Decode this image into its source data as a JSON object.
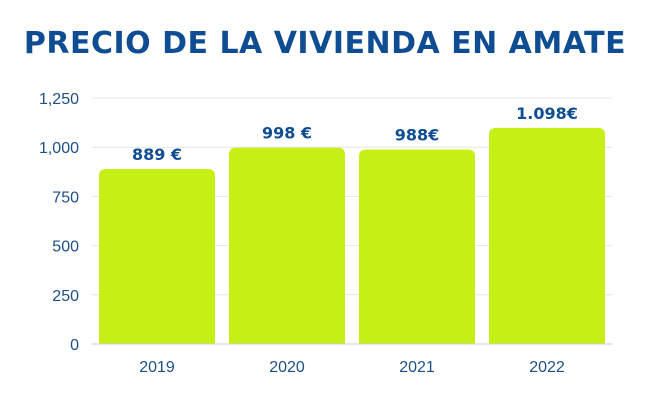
{
  "colors": {
    "title": "#0e4d92",
    "bar": "#c5ef15",
    "tick": "#1d4f86",
    "grid": "#e6e6e6"
  },
  "chart_data": {
    "type": "bar",
    "title": "PRECIO DE LA VIVIENDA EN AMATE",
    "categories": [
      "2019",
      "2020",
      "2021",
      "2022"
    ],
    "values": [
      889,
      998,
      988,
      1098
    ],
    "data_labels": [
      "889 €",
      "998 €",
      "988€",
      "1.098€"
    ],
    "yticks": [
      0,
      250,
      500,
      750,
      1000,
      1250
    ],
    "ytick_labels": [
      "0",
      "250",
      "500",
      "750",
      "1,000",
      "1,250"
    ],
    "ylim": [
      0,
      1250
    ],
    "xlabel": "",
    "ylabel": "",
    "grid": true,
    "legend": "none"
  }
}
